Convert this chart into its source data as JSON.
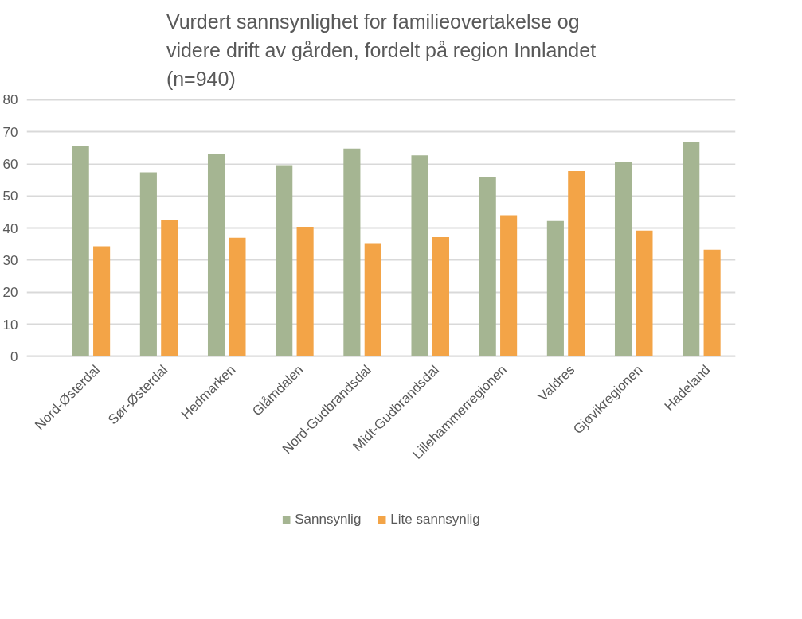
{
  "chart_data": {
    "type": "bar",
    "title": "Vurdert sannsynlighet for familieovertakelse og\nvidere drift av gården, fordelt på region Innlandet\n(n=940)",
    "categories": [
      "Nord-Østerdal",
      "Sør-Østerdal",
      "Hedmarken",
      "Glåmdalen",
      "Nord-Gudbrandsdal",
      "Midt-Gudbrandsdal",
      "Lillehammerregionen",
      "Valdres",
      "Gjøvikregionen",
      "Hadeland"
    ],
    "series": [
      {
        "name": "Sannsynlig",
        "color": "#a5b592",
        "values": [
          65.5,
          57.4,
          63,
          59.4,
          64.8,
          62.7,
          56,
          42.2,
          60.7,
          66.7
        ]
      },
      {
        "name": "Lite sannsynlig",
        "color": "#f3a447",
        "values": [
          34.3,
          42.5,
          37,
          40.4,
          35.1,
          37.2,
          44,
          57.8,
          39.2,
          33.3
        ]
      }
    ],
    "ylim": [
      0,
      80
    ],
    "yticks": [
      0,
      10,
      20,
      30,
      40,
      50,
      60,
      70,
      80
    ],
    "grid": "y",
    "legend": "bottom"
  }
}
